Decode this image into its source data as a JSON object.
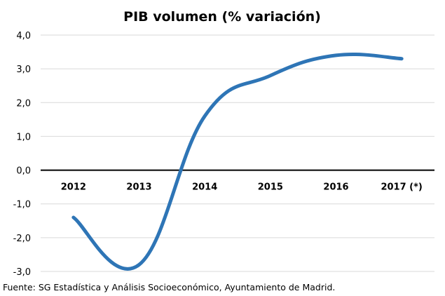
{
  "chart_data": {
    "type": "line",
    "title": "PIB volumen (% variación)",
    "categories": [
      "2012",
      "2013",
      "2014",
      "2015",
      "2016",
      "2017 (*)"
    ],
    "series": [
      {
        "name": "PIB volumen (% variación)",
        "values": [
          -1.4,
          -2.8,
          1.6,
          2.8,
          3.4,
          3.3
        ],
        "color": "#2E75B6"
      }
    ],
    "ylim": [
      -3.0,
      4.0
    ],
    "yticks": [
      "-3,0",
      "-2,0",
      "-1,0",
      "0,0",
      "1,0",
      "2,0",
      "3,0",
      "4,0"
    ],
    "ytick_values": [
      -3,
      -2,
      -1,
      0,
      1,
      2,
      3,
      4
    ],
    "xlabel": "",
    "ylabel": "",
    "grid": true,
    "legend": "none"
  },
  "source": "Fuente: SG Estadística y Análisis Socioeconómico, Ayuntamiento de Madrid.",
  "colors": {
    "line": "#2E75B6",
    "grid": "#D9D9D9",
    "axis": "#000000"
  }
}
